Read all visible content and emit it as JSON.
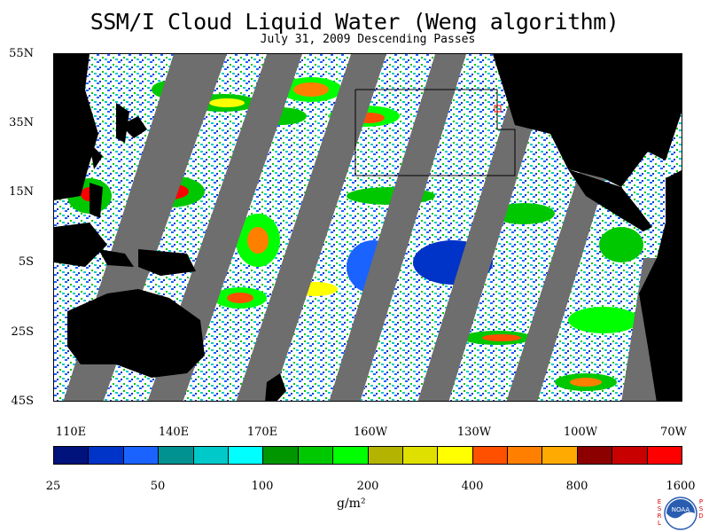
{
  "title": "SSM/I Cloud Liquid Water (Weng algorithm)",
  "subtitle": "July 31, 2009  Descending Passes",
  "map": {
    "lat_labels": [
      "55N",
      "35N",
      "15N",
      "5S",
      "25S",
      "45S"
    ],
    "lon_labels": [
      "110E",
      "140E",
      "170E",
      "160W",
      "130W",
      "100W",
      "70W"
    ],
    "land_color": "#000000",
    "no_data_color": "#6e6e6e"
  },
  "colorbar": {
    "colors": [
      "#00127c",
      "#0033c8",
      "#1b63ff",
      "#009191",
      "#00c9c9",
      "#00ffff",
      "#009600",
      "#00c800",
      "#00ff00",
      "#b4b400",
      "#e0e000",
      "#ffff00",
      "#ff5000",
      "#ff8000",
      "#ffaa00",
      "#8c0000",
      "#c80000",
      "#ff0000"
    ],
    "labels": [
      "25",
      "50",
      "100",
      "200",
      "400",
      "800",
      "1600"
    ],
    "units": "g/m²"
  },
  "logo": {
    "left_text": "ESRL",
    "right_text": "PSD",
    "center_text": "NOAA"
  }
}
